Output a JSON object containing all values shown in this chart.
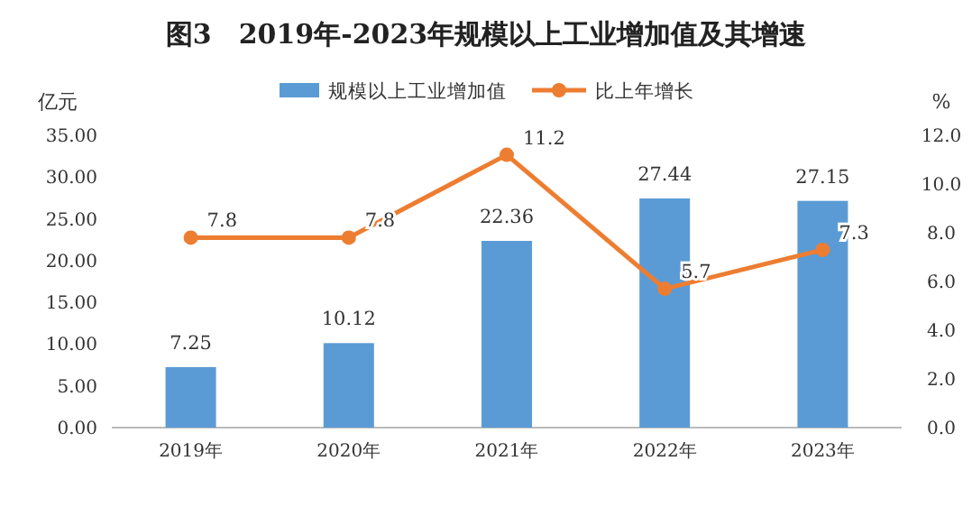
{
  "chart_data": {
    "type": "bar",
    "title": "图3　2019年-2023年规模以上工业增加值及其增速",
    "ylabel": "亿元",
    "y2label": "%",
    "categories": [
      "2019年",
      "2020年",
      "2021年",
      "2022年",
      "2023年"
    ],
    "series": [
      {
        "name": "规模以上工业增加值",
        "color": "#5b9bd5",
        "values": [
          7.25,
          10.12,
          22.36,
          27.44,
          27.15
        ]
      },
      {
        "name": "比上年增长",
        "type": "line",
        "axis": "y2",
        "color": "#ed7d31",
        "values": [
          7.8,
          7.8,
          11.2,
          5.7,
          7.3
        ]
      }
    ],
    "ylim": [
      0,
      35
    ],
    "yticks": [
      {
        "value": 0,
        "label": "0.00"
      },
      {
        "value": 5,
        "label": "5.00"
      },
      {
        "value": 10,
        "label": "10.00"
      },
      {
        "value": 15,
        "label": "15.00"
      },
      {
        "value": 20,
        "label": "20.00"
      },
      {
        "value": 25,
        "label": "25.00"
      },
      {
        "value": 30,
        "label": "30.00"
      },
      {
        "value": 35,
        "label": "35.00"
      }
    ],
    "y2lim": [
      0,
      12
    ],
    "y2ticks": [
      {
        "value": 0,
        "label": "0.0"
      },
      {
        "value": 2,
        "label": "2.0"
      },
      {
        "value": 4,
        "label": "4.0"
      },
      {
        "value": 6,
        "label": "6.0"
      },
      {
        "value": 8,
        "label": "8.0"
      },
      {
        "value": 10,
        "label": "10.0"
      },
      {
        "value": 12,
        "label": "12.0"
      }
    ],
    "data_labels": true,
    "legend": "top",
    "marker": "circle",
    "line_style": "solid"
  }
}
